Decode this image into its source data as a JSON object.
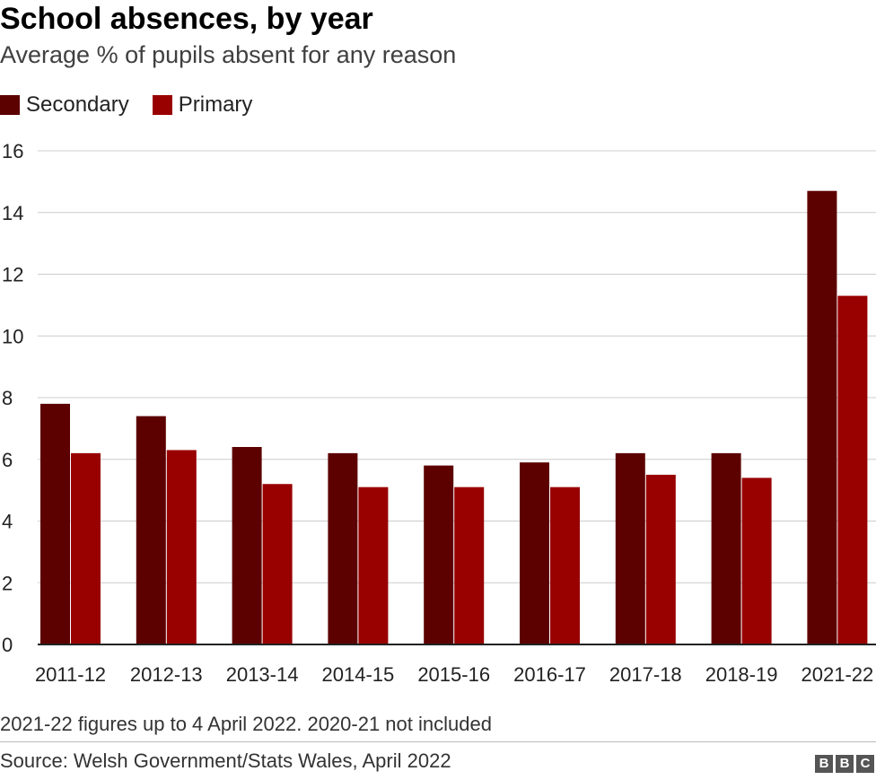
{
  "chart_data": {
    "type": "bar",
    "title": "School absences, by year",
    "subtitle": "Average % of pupils absent for any reason",
    "categories": [
      "2011-12",
      "2012-13",
      "2013-14",
      "2014-15",
      "2015-16",
      "2016-17",
      "2017-18",
      "2018-19",
      "2021-22"
    ],
    "series": [
      {
        "name": "Secondary",
        "color": "#5c0000",
        "values": [
          7.8,
          7.4,
          6.4,
          6.2,
          5.8,
          5.9,
          6.2,
          6.2,
          14.7
        ]
      },
      {
        "name": "Primary",
        "color": "#990000",
        "values": [
          6.2,
          6.3,
          5.2,
          5.1,
          5.1,
          5.1,
          5.5,
          5.4,
          11.3
        ]
      }
    ],
    "ylim": [
      0,
      16
    ],
    "yticks": [
      0,
      2,
      4,
      6,
      8,
      10,
      12,
      14,
      16
    ],
    "grid": true,
    "legend_position": "top-left"
  },
  "footer": {
    "note": "2021-22 figures up to 4 April 2022. 2020-21 not included",
    "source": "Source: Welsh Government/Stats Wales, April 2022",
    "logo_letters": [
      "B",
      "B",
      "C"
    ]
  }
}
